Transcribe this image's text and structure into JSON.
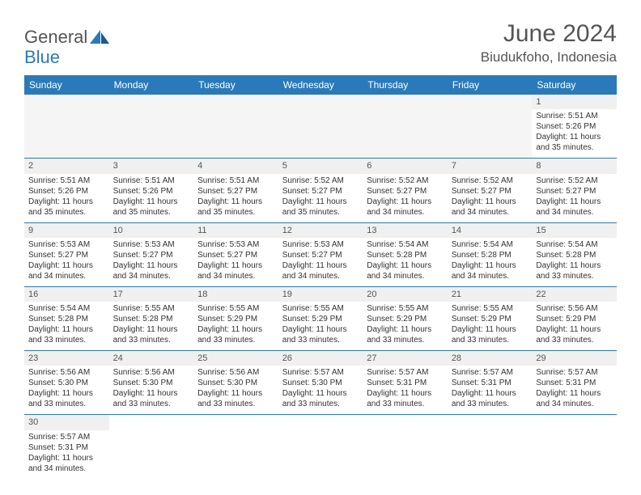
{
  "brand": {
    "general": "General",
    "blue": "Blue"
  },
  "title": "June 2024",
  "location": "Biudukfoho, Indonesia",
  "colors": {
    "accent": "#2a7ab9",
    "text": "#555555",
    "cell_text": "#333333",
    "empty_bg": "#f5f5f5",
    "daynum_bg": "#f0f0f0"
  },
  "weekdays": [
    "Sunday",
    "Monday",
    "Tuesday",
    "Wednesday",
    "Thursday",
    "Friday",
    "Saturday"
  ],
  "weeks": [
    [
      null,
      null,
      null,
      null,
      null,
      null,
      {
        "d": "1",
        "rise": "Sunrise: 5:51 AM",
        "set": "Sunset: 5:26 PM",
        "day1": "Daylight: 11 hours",
        "day2": "and 35 minutes."
      }
    ],
    [
      {
        "d": "2",
        "rise": "Sunrise: 5:51 AM",
        "set": "Sunset: 5:26 PM",
        "day1": "Daylight: 11 hours",
        "day2": "and 35 minutes."
      },
      {
        "d": "3",
        "rise": "Sunrise: 5:51 AM",
        "set": "Sunset: 5:26 PM",
        "day1": "Daylight: 11 hours",
        "day2": "and 35 minutes."
      },
      {
        "d": "4",
        "rise": "Sunrise: 5:51 AM",
        "set": "Sunset: 5:27 PM",
        "day1": "Daylight: 11 hours",
        "day2": "and 35 minutes."
      },
      {
        "d": "5",
        "rise": "Sunrise: 5:52 AM",
        "set": "Sunset: 5:27 PM",
        "day1": "Daylight: 11 hours",
        "day2": "and 35 minutes."
      },
      {
        "d": "6",
        "rise": "Sunrise: 5:52 AM",
        "set": "Sunset: 5:27 PM",
        "day1": "Daylight: 11 hours",
        "day2": "and 34 minutes."
      },
      {
        "d": "7",
        "rise": "Sunrise: 5:52 AM",
        "set": "Sunset: 5:27 PM",
        "day1": "Daylight: 11 hours",
        "day2": "and 34 minutes."
      },
      {
        "d": "8",
        "rise": "Sunrise: 5:52 AM",
        "set": "Sunset: 5:27 PM",
        "day1": "Daylight: 11 hours",
        "day2": "and 34 minutes."
      }
    ],
    [
      {
        "d": "9",
        "rise": "Sunrise: 5:53 AM",
        "set": "Sunset: 5:27 PM",
        "day1": "Daylight: 11 hours",
        "day2": "and 34 minutes."
      },
      {
        "d": "10",
        "rise": "Sunrise: 5:53 AM",
        "set": "Sunset: 5:27 PM",
        "day1": "Daylight: 11 hours",
        "day2": "and 34 minutes."
      },
      {
        "d": "11",
        "rise": "Sunrise: 5:53 AM",
        "set": "Sunset: 5:27 PM",
        "day1": "Daylight: 11 hours",
        "day2": "and 34 minutes."
      },
      {
        "d": "12",
        "rise": "Sunrise: 5:53 AM",
        "set": "Sunset: 5:27 PM",
        "day1": "Daylight: 11 hours",
        "day2": "and 34 minutes."
      },
      {
        "d": "13",
        "rise": "Sunrise: 5:54 AM",
        "set": "Sunset: 5:28 PM",
        "day1": "Daylight: 11 hours",
        "day2": "and 34 minutes."
      },
      {
        "d": "14",
        "rise": "Sunrise: 5:54 AM",
        "set": "Sunset: 5:28 PM",
        "day1": "Daylight: 11 hours",
        "day2": "and 34 minutes."
      },
      {
        "d": "15",
        "rise": "Sunrise: 5:54 AM",
        "set": "Sunset: 5:28 PM",
        "day1": "Daylight: 11 hours",
        "day2": "and 33 minutes."
      }
    ],
    [
      {
        "d": "16",
        "rise": "Sunrise: 5:54 AM",
        "set": "Sunset: 5:28 PM",
        "day1": "Daylight: 11 hours",
        "day2": "and 33 minutes."
      },
      {
        "d": "17",
        "rise": "Sunrise: 5:55 AM",
        "set": "Sunset: 5:28 PM",
        "day1": "Daylight: 11 hours",
        "day2": "and 33 minutes."
      },
      {
        "d": "18",
        "rise": "Sunrise: 5:55 AM",
        "set": "Sunset: 5:29 PM",
        "day1": "Daylight: 11 hours",
        "day2": "and 33 minutes."
      },
      {
        "d": "19",
        "rise": "Sunrise: 5:55 AM",
        "set": "Sunset: 5:29 PM",
        "day1": "Daylight: 11 hours",
        "day2": "and 33 minutes."
      },
      {
        "d": "20",
        "rise": "Sunrise: 5:55 AM",
        "set": "Sunset: 5:29 PM",
        "day1": "Daylight: 11 hours",
        "day2": "and 33 minutes."
      },
      {
        "d": "21",
        "rise": "Sunrise: 5:55 AM",
        "set": "Sunset: 5:29 PM",
        "day1": "Daylight: 11 hours",
        "day2": "and 33 minutes."
      },
      {
        "d": "22",
        "rise": "Sunrise: 5:56 AM",
        "set": "Sunset: 5:29 PM",
        "day1": "Daylight: 11 hours",
        "day2": "and 33 minutes."
      }
    ],
    [
      {
        "d": "23",
        "rise": "Sunrise: 5:56 AM",
        "set": "Sunset: 5:30 PM",
        "day1": "Daylight: 11 hours",
        "day2": "and 33 minutes."
      },
      {
        "d": "24",
        "rise": "Sunrise: 5:56 AM",
        "set": "Sunset: 5:30 PM",
        "day1": "Daylight: 11 hours",
        "day2": "and 33 minutes."
      },
      {
        "d": "25",
        "rise": "Sunrise: 5:56 AM",
        "set": "Sunset: 5:30 PM",
        "day1": "Daylight: 11 hours",
        "day2": "and 33 minutes."
      },
      {
        "d": "26",
        "rise": "Sunrise: 5:57 AM",
        "set": "Sunset: 5:30 PM",
        "day1": "Daylight: 11 hours",
        "day2": "and 33 minutes."
      },
      {
        "d": "27",
        "rise": "Sunrise: 5:57 AM",
        "set": "Sunset: 5:31 PM",
        "day1": "Daylight: 11 hours",
        "day2": "and 33 minutes."
      },
      {
        "d": "28",
        "rise": "Sunrise: 5:57 AM",
        "set": "Sunset: 5:31 PM",
        "day1": "Daylight: 11 hours",
        "day2": "and 33 minutes."
      },
      {
        "d": "29",
        "rise": "Sunrise: 5:57 AM",
        "set": "Sunset: 5:31 PM",
        "day1": "Daylight: 11 hours",
        "day2": "and 34 minutes."
      }
    ],
    [
      {
        "d": "30",
        "rise": "Sunrise: 5:57 AM",
        "set": "Sunset: 5:31 PM",
        "day1": "Daylight: 11 hours",
        "day2": "and 34 minutes."
      },
      null,
      null,
      null,
      null,
      null,
      null
    ]
  ]
}
